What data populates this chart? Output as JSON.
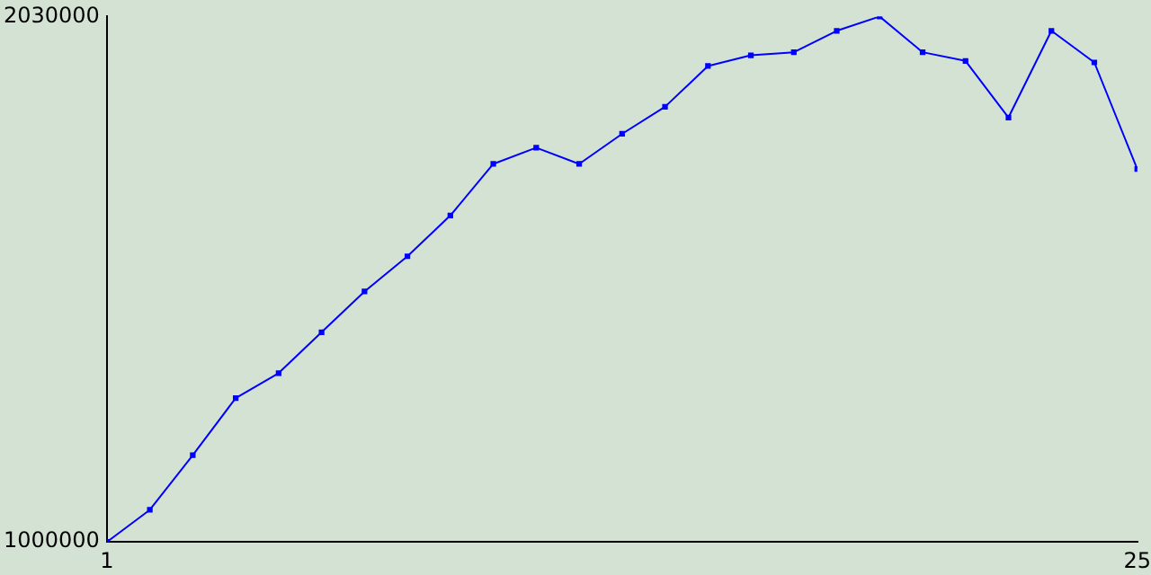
{
  "chart_data": {
    "type": "line",
    "color": "#0000ff",
    "marker": "square",
    "grid": false,
    "legend": false,
    "x": [
      1,
      2,
      3,
      4,
      5,
      6,
      7,
      8,
      9,
      10,
      11,
      12,
      13,
      14,
      15,
      16,
      17,
      18,
      19,
      20,
      21,
      22,
      23,
      24,
      25
    ],
    "values": [
      1000000,
      1063000,
      1170000,
      1282000,
      1331000,
      1411000,
      1491000,
      1560000,
      1640000,
      1741000,
      1773000,
      1741000,
      1800000,
      1853000,
      1933000,
      1954000,
      1960000,
      2002000,
      2030000,
      1960000,
      1943000,
      1832000,
      2002000,
      1940000,
      1731000
    ],
    "xlim": [
      1,
      25
    ],
    "xticks": [
      1,
      25
    ],
    "ylim": [
      1000000,
      2030000
    ],
    "yticks": [
      1000000,
      2030000
    ]
  }
}
